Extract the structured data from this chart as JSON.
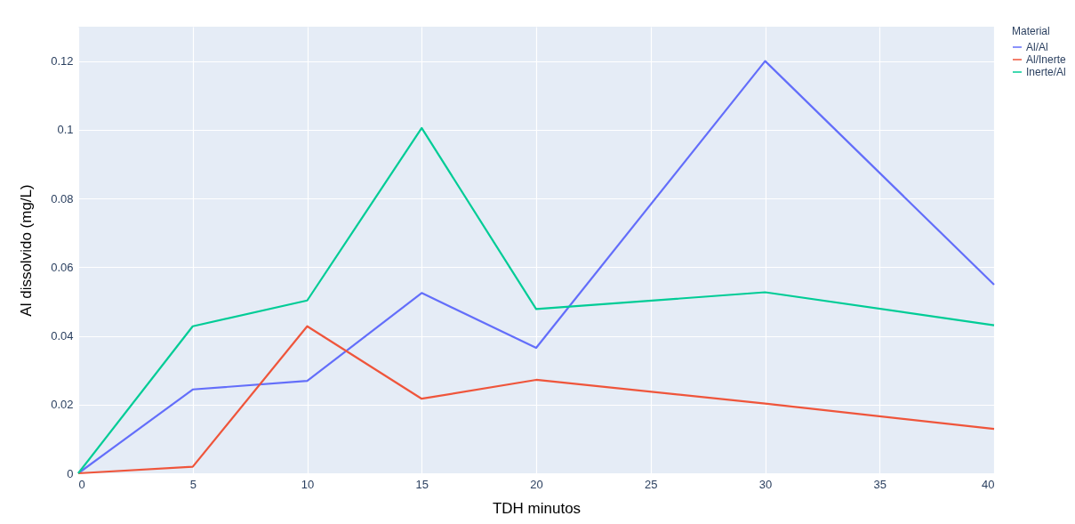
{
  "chart_data": {
    "type": "line",
    "xlabel": "TDH minutos",
    "ylabel": "Al dissolvido (mg/L)",
    "legend_title": "Material",
    "legend": "top right",
    "grid": true,
    "xlim": [
      0,
      40
    ],
    "xticks": [
      0,
      5,
      10,
      15,
      20,
      25,
      30,
      35,
      40
    ],
    "ylim": [
      0,
      0.13
    ],
    "yticks": [
      0,
      0.02,
      0.04,
      0.06,
      0.08,
      0.1,
      0.12
    ],
    "x": [
      0,
      5,
      10,
      15,
      20,
      30,
      40
    ],
    "series": [
      {
        "name": "Al/Al",
        "color": "#636efa",
        "values": [
          0,
          0.0244,
          0.0269,
          0.0525,
          0.0365,
          0.12,
          0.0549
        ]
      },
      {
        "name": "Al/Inerte",
        "color": "#ef553b",
        "values": [
          0,
          0.0019,
          0.0428,
          0.0217,
          0.0272,
          0.0203,
          0.0129
        ]
      },
      {
        "name": "Inerte/Al",
        "color": "#00cc96",
        "values": [
          0,
          0.0428,
          0.0503,
          0.1005,
          0.0478,
          0.0527,
          0.0431
        ]
      }
    ]
  }
}
